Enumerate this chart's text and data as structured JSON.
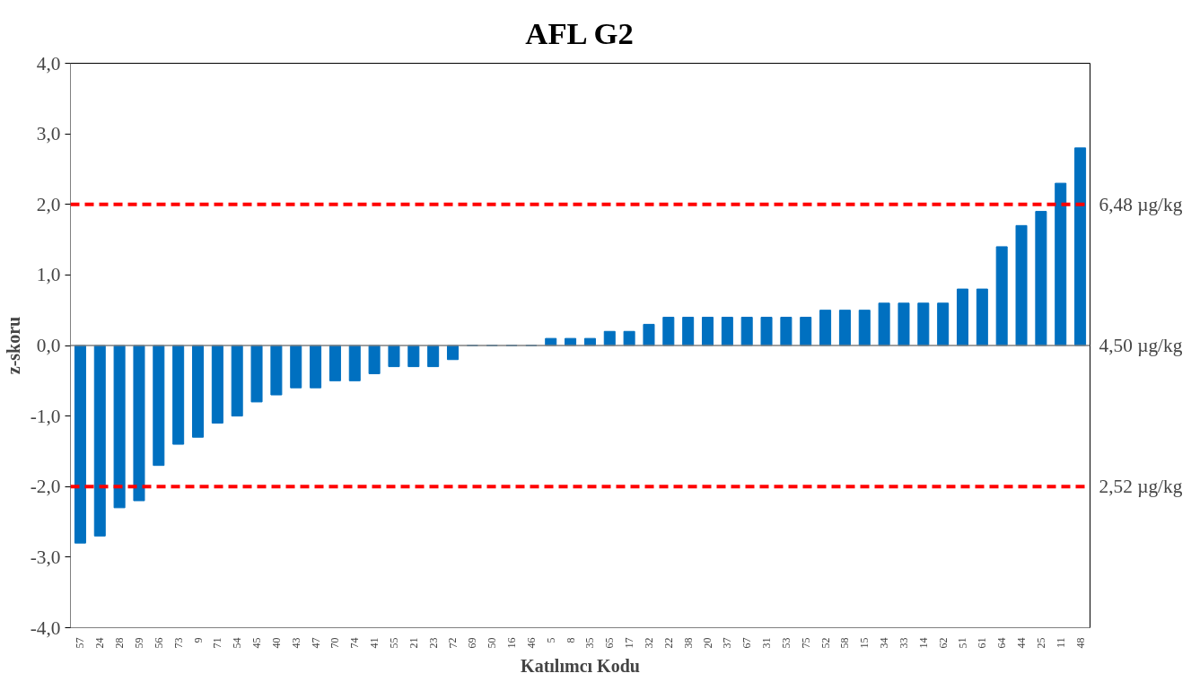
{
  "chart_data": {
    "type": "bar",
    "title": "AFL G2",
    "xlabel": "Katılımcı Kodu",
    "ylabel": "z-skoru",
    "categories": [
      "57",
      "24",
      "28",
      "59",
      "56",
      "73",
      "9",
      "71",
      "54",
      "45",
      "40",
      "43",
      "47",
      "70",
      "74",
      "41",
      "55",
      "21",
      "23",
      "72",
      "69",
      "50",
      "16",
      "46",
      "5",
      "8",
      "35",
      "65",
      "17",
      "32",
      "22",
      "38",
      "20",
      "37",
      "67",
      "31",
      "53",
      "75",
      "52",
      "58",
      "15",
      "34",
      "33",
      "14",
      "62",
      "51",
      "61",
      "64",
      "44",
      "25",
      "11",
      "48"
    ],
    "values": [
      -2.8,
      -2.7,
      -2.3,
      -2.2,
      -1.7,
      -1.4,
      -1.3,
      -1.1,
      -1.0,
      -0.8,
      -0.7,
      -0.6,
      -0.6,
      -0.5,
      -0.5,
      -0.4,
      -0.3,
      -0.3,
      -0.3,
      -0.2,
      0,
      0,
      0,
      0,
      0.1,
      0.1,
      0.1,
      0.2,
      0.2,
      0.3,
      0.4,
      0.4,
      0.4,
      0.4,
      0.4,
      0.4,
      0.4,
      0.4,
      0.5,
      0.5,
      0.5,
      0.6,
      0.6,
      0.6,
      0.6,
      0.8,
      0.8,
      1.4,
      1.7,
      1.9,
      2.3,
      2.8
    ],
    "color": "#0070c0",
    "ylim": [
      -4,
      4
    ],
    "yticks": [
      {
        "value": -4,
        "label": "-4,0"
      },
      {
        "value": -3,
        "label": "-3,0"
      },
      {
        "value": -2,
        "label": "-2,0"
      },
      {
        "value": -1,
        "label": "-1,0"
      },
      {
        "value": 0,
        "label": "0,0"
      },
      {
        "value": 1,
        "label": "1,0"
      },
      {
        "value": 2,
        "label": "2,0"
      },
      {
        "value": 3,
        "label": "3,0"
      },
      {
        "value": 4,
        "label": "4,0"
      }
    ],
    "ref_lines": [
      {
        "axis": "y",
        "value": 2,
        "label": "6,48 µg/kg",
        "color": "#ff0000",
        "line_style": "dashed"
      },
      {
        "axis": "y",
        "value": 0,
        "label": "4,50 µg/kg",
        "color": "#808080",
        "line_style": "solid"
      },
      {
        "axis": "y",
        "value": -2,
        "label": "2,52 µg/kg",
        "color": "#ff0000",
        "line_style": "dashed"
      }
    ],
    "grid": false
  }
}
